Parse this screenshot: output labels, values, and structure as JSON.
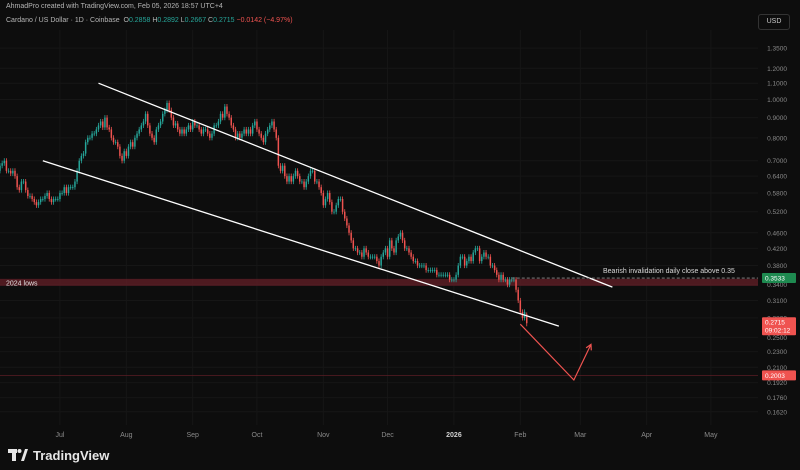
{
  "header": {
    "created": "AhmadPro created with TradingView.com, Feb 05, 2026 18:57 UTC+4",
    "symbol": "Cardano / US Dollar · 1D · Coinbase",
    "open_label": "O",
    "open": "0.2858",
    "high_label": "H",
    "high": "0.2892",
    "low_label": "L",
    "low": "0.2667",
    "close_label": "C",
    "close": "0.2715",
    "change": "−0.0142 (−4.97%)"
  },
  "currency": "USD",
  "footer": {
    "brand": "TradingView"
  },
  "colors": {
    "up": "#26a69a",
    "down": "#ef5350",
    "channel": "#ffffff",
    "projection": "#ef5350",
    "lows_zone": "#5a1d24"
  },
  "chart_data": {
    "type": "candlestick",
    "scale": "log",
    "y_range": [
      0.15,
      1.5
    ],
    "y_ticks": [
      "1.3500",
      "1.2000",
      "1.1000",
      "1.0000",
      "0.9000",
      "0.8000",
      "0.7000",
      "0.6400",
      "0.5800",
      "0.5200",
      "0.4600",
      "0.4200",
      "0.3800",
      "0.3400",
      "0.3100",
      "0.2800",
      "0.2500",
      "0.2300",
      "0.2100",
      "0.1920",
      "0.1760",
      "0.1620"
    ],
    "x_range": [
      "2025-06-03",
      "2026-05-23"
    ],
    "x_ticks": [
      {
        "label": "Jul",
        "date": "2025-07-01"
      },
      {
        "label": "Aug",
        "date": "2025-08-01"
      },
      {
        "label": "Sep",
        "date": "2025-09-01"
      },
      {
        "label": "Oct",
        "date": "2025-10-01"
      },
      {
        "label": "Nov",
        "date": "2025-11-01"
      },
      {
        "label": "Dec",
        "date": "2025-12-01"
      },
      {
        "label": "2026",
        "date": "2026-01-01"
      },
      {
        "label": "Feb",
        "date": "2026-02-01"
      },
      {
        "label": "Mar",
        "date": "2026-03-01"
      },
      {
        "label": "Apr",
        "date": "2026-04-01"
      },
      {
        "label": "May",
        "date": "2026-05-01"
      }
    ],
    "series": [
      {
        "start": "2025-06-03",
        "close": [
          0.68,
          0.69,
          0.7,
          0.66,
          0.66,
          0.65,
          0.66,
          0.64,
          0.6,
          0.59,
          0.62,
          0.62,
          0.59,
          0.57,
          0.57,
          0.56,
          0.55,
          0.54,
          0.55,
          0.56,
          0.56,
          0.57,
          0.58,
          0.56,
          0.55,
          0.56,
          0.56,
          0.56,
          0.58,
          0.58,
          0.6,
          0.58,
          0.6,
          0.6,
          0.6,
          0.62,
          0.66,
          0.7,
          0.72,
          0.73,
          0.78,
          0.8,
          0.8,
          0.82,
          0.82,
          0.84,
          0.86,
          0.88,
          0.85,
          0.9,
          0.85,
          0.84,
          0.8,
          0.78,
          0.78,
          0.76,
          0.72,
          0.7,
          0.74,
          0.72,
          0.76,
          0.78,
          0.76,
          0.8,
          0.82,
          0.84,
          0.86,
          0.88,
          0.92,
          0.86,
          0.82,
          0.8,
          0.78,
          0.84,
          0.86,
          0.88,
          0.92,
          0.94,
          0.98,
          0.94,
          0.9,
          0.86,
          0.87,
          0.84,
          0.82,
          0.84,
          0.82,
          0.84,
          0.86,
          0.84,
          0.88,
          0.86,
          0.86,
          0.84,
          0.82,
          0.84,
          0.84,
          0.82,
          0.8,
          0.82,
          0.86,
          0.86,
          0.88,
          0.92,
          0.9,
          0.96,
          0.92,
          0.9,
          0.86,
          0.84,
          0.8,
          0.82,
          0.8,
          0.82,
          0.84,
          0.82,
          0.84,
          0.82,
          0.86,
          0.88,
          0.84,
          0.82,
          0.8,
          0.78,
          0.82,
          0.84,
          0.86,
          0.88,
          0.84,
          0.8,
          0.68,
          0.66,
          0.68,
          0.64,
          0.62,
          0.64,
          0.62,
          0.64,
          0.66,
          0.64,
          0.62,
          0.62,
          0.6,
          0.62,
          0.64,
          0.66,
          0.66,
          0.62,
          0.62,
          0.6,
          0.58,
          0.54,
          0.56,
          0.58,
          0.55,
          0.52,
          0.52,
          0.54,
          0.56,
          0.56,
          0.52,
          0.5,
          0.48,
          0.46,
          0.44,
          0.42,
          0.42,
          0.41,
          0.41,
          0.4,
          0.42,
          0.41,
          0.4,
          0.4,
          0.4,
          0.4,
          0.39,
          0.38,
          0.4,
          0.41,
          0.42,
          0.4,
          0.44,
          0.42,
          0.41,
          0.44,
          0.45,
          0.46,
          0.44,
          0.42,
          0.42,
          0.41,
          0.4,
          0.39,
          0.39,
          0.38,
          0.38,
          0.38,
          0.38,
          0.37,
          0.37,
          0.37,
          0.37,
          0.37,
          0.36,
          0.36,
          0.36,
          0.36,
          0.36,
          0.36,
          0.35,
          0.35,
          0.35,
          0.36,
          0.38,
          0.4,
          0.4,
          0.38,
          0.39,
          0.4,
          0.39,
          0.41,
          0.42,
          0.42,
          0.39,
          0.4,
          0.41,
          0.4,
          0.4,
          0.38,
          0.38,
          0.37,
          0.36,
          0.35,
          0.36,
          0.35,
          0.35,
          0.34,
          0.35,
          0.35,
          0.35,
          0.33,
          0.31,
          0.29,
          0.28,
          0.29,
          0.2715
        ],
        "open": [
          0.66,
          0.68,
          0.69,
          0.7,
          0.66,
          0.66,
          0.65,
          0.66,
          0.64,
          0.6,
          0.59,
          0.62,
          0.62,
          0.59,
          0.57,
          0.57,
          0.56,
          0.55,
          0.54,
          0.55,
          0.56,
          0.56,
          0.57,
          0.58,
          0.56,
          0.55,
          0.56,
          0.56,
          0.56,
          0.58,
          0.58,
          0.6,
          0.58,
          0.6,
          0.6,
          0.6,
          0.62,
          0.66,
          0.7,
          0.72,
          0.73,
          0.78,
          0.8,
          0.8,
          0.82,
          0.82,
          0.84,
          0.86,
          0.88,
          0.85,
          0.9,
          0.85,
          0.84,
          0.8,
          0.78,
          0.78,
          0.76,
          0.72,
          0.7,
          0.74,
          0.72,
          0.76,
          0.78,
          0.76,
          0.8,
          0.82,
          0.84,
          0.86,
          0.88,
          0.92,
          0.86,
          0.82,
          0.8,
          0.78,
          0.84,
          0.86,
          0.88,
          0.92,
          0.94,
          0.98,
          0.94,
          0.9,
          0.86,
          0.87,
          0.84,
          0.82,
          0.84,
          0.82,
          0.84,
          0.86,
          0.84,
          0.88,
          0.86,
          0.86,
          0.84,
          0.82,
          0.84,
          0.84,
          0.82,
          0.8,
          0.82,
          0.86,
          0.86,
          0.88,
          0.92,
          0.9,
          0.96,
          0.92,
          0.9,
          0.86,
          0.84,
          0.8,
          0.82,
          0.8,
          0.82,
          0.84,
          0.82,
          0.84,
          0.82,
          0.86,
          0.88,
          0.84,
          0.82,
          0.8,
          0.78,
          0.82,
          0.84,
          0.86,
          0.88,
          0.84,
          0.8,
          0.68,
          0.66,
          0.68,
          0.64,
          0.62,
          0.64,
          0.62,
          0.64,
          0.66,
          0.64,
          0.62,
          0.62,
          0.6,
          0.62,
          0.64,
          0.66,
          0.66,
          0.62,
          0.62,
          0.6,
          0.58,
          0.54,
          0.56,
          0.58,
          0.55,
          0.52,
          0.52,
          0.54,
          0.56,
          0.56,
          0.52,
          0.5,
          0.48,
          0.46,
          0.44,
          0.42,
          0.42,
          0.41,
          0.41,
          0.4,
          0.42,
          0.41,
          0.4,
          0.4,
          0.4,
          0.4,
          0.39,
          0.38,
          0.4,
          0.41,
          0.42,
          0.4,
          0.44,
          0.42,
          0.41,
          0.44,
          0.45,
          0.46,
          0.44,
          0.42,
          0.42,
          0.41,
          0.4,
          0.39,
          0.39,
          0.38,
          0.38,
          0.38,
          0.38,
          0.37,
          0.37,
          0.37,
          0.37,
          0.37,
          0.36,
          0.36,
          0.36,
          0.36,
          0.36,
          0.36,
          0.35,
          0.35,
          0.35,
          0.36,
          0.38,
          0.4,
          0.4,
          0.38,
          0.39,
          0.4,
          0.39,
          0.41,
          0.42,
          0.42,
          0.39,
          0.4,
          0.41,
          0.4,
          0.4,
          0.38,
          0.38,
          0.37,
          0.36,
          0.35,
          0.36,
          0.35,
          0.35,
          0.34,
          0.35,
          0.35,
          0.35,
          0.33,
          0.31,
          0.29,
          0.28,
          0.2858
        ]
      }
    ],
    "last_candle": {
      "open": 0.2858,
      "high": 0.2892,
      "low": 0.2667,
      "close": 0.2715
    },
    "channel_lines": [
      {
        "name": "upper",
        "from": {
          "date": "2025-07-19",
          "price": 1.1
        },
        "to": {
          "date": "2026-03-16",
          "price": 0.335
        }
      },
      {
        "name": "lower",
        "from": {
          "date": "2025-06-23",
          "price": 0.7
        },
        "to": {
          "date": "2026-02-19",
          "price": 0.267
        }
      }
    ],
    "projection": [
      {
        "date": "2026-02-01",
        "price": 0.27
      },
      {
        "date": "2026-02-26",
        "price": 0.195
      },
      {
        "date": "2026-03-06",
        "price": 0.24
      }
    ],
    "zone": {
      "label": "2024 lows",
      "top": 0.3516,
      "bottom": 0.3376
    },
    "horizontal_level": {
      "price": 0.3533,
      "from": "2026-01-28",
      "to": "2026-05-23"
    },
    "level_low": {
      "price": 0.2003
    },
    "annotation": {
      "text": "Bearish invalidation daily close above 0.35",
      "price": 0.3685
    },
    "price_labels": [
      {
        "value": "0.3533",
        "type": "level"
      },
      {
        "value": "0.2715",
        "type": "last"
      },
      {
        "value": "09:02:12",
        "type": "countdown"
      },
      {
        "value": "0.2003",
        "type": "level_low"
      }
    ]
  }
}
